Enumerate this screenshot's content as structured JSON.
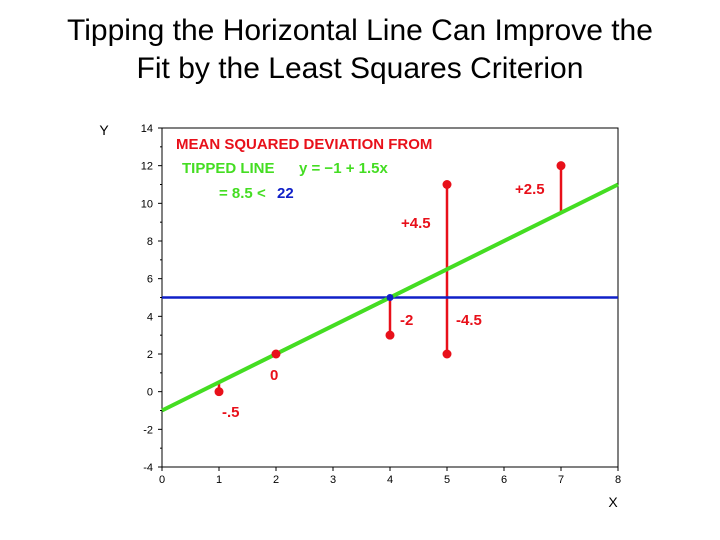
{
  "title": {
    "line1": "Tipping the Horizontal Line Can Improve the",
    "line2": "Fit by the Least Squares Criterion"
  },
  "colors": {
    "points": "#e8101a",
    "tipped_line": "#44dd22",
    "horizontal_line": "#1020c8",
    "annotation_red": "#e8101a",
    "annotation_green": "#44dd22",
    "annotation_blue": "#1020c8"
  },
  "chart_data": {
    "type": "scatter",
    "xlabel": "X",
    "ylabel": "Y",
    "xlim": [
      0,
      8
    ],
    "ylim": [
      -4,
      14
    ],
    "x_ticks": [
      "0",
      "1",
      "2",
      "3",
      "4",
      "5",
      "6",
      "7",
      "8"
    ],
    "y_ticks": [
      "14",
      "12",
      "10",
      "8",
      "6",
      "4",
      "2",
      "0",
      "-2",
      "-4"
    ],
    "points": [
      {
        "x": 1,
        "y": 0
      },
      {
        "x": 2,
        "y": 2
      },
      {
        "x": 4,
        "y": 3
      },
      {
        "x": 5,
        "y": 2
      },
      {
        "x": 5,
        "y": 11
      },
      {
        "x": 7,
        "y": 12
      }
    ],
    "horizontal_line": {
      "y": 5
    },
    "tipped_line": {
      "intercept": -1,
      "slope": 1.5
    },
    "intersection_point": {
      "x": 4,
      "y": 5
    },
    "residuals": [
      {
        "x": 1,
        "from": 0,
        "to": 0.5,
        "label": "-.5"
      },
      {
        "x": 2,
        "from": 2,
        "to": 2,
        "label": "0"
      },
      {
        "x": 4,
        "from": 3,
        "to": 5,
        "label": "-2"
      },
      {
        "x": 5,
        "from": 2,
        "to": 11,
        "label_pos": "+4.5",
        "label_neg": "-4.5"
      },
      {
        "x": 7,
        "from": 12,
        "to": 9.5,
        "label": "+2.5"
      }
    ],
    "annotation": {
      "line1": "MEAN SQUARED DEVIATION FROM",
      "line2_prefix": "TIPPED LINE",
      "line2_eq": "y = −1 + 1.5x",
      "line3_prefix": "= 8.5 <",
      "line3_value": "22"
    }
  }
}
